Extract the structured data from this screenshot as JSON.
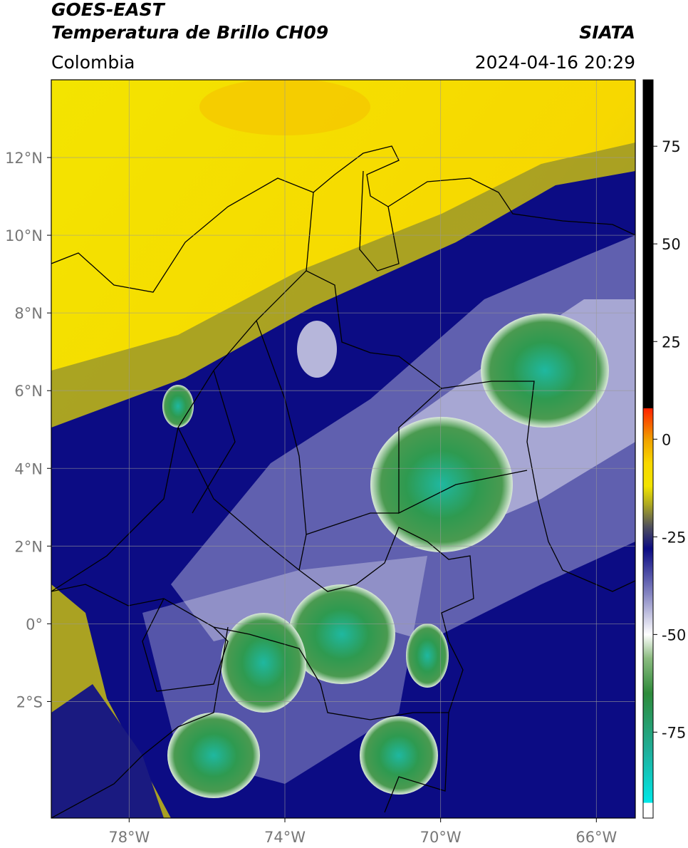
{
  "header": {
    "source": "GOES-EAST",
    "title": "Temperatura de Brillo CH09",
    "agency": "SIATA",
    "region": "Colombia",
    "datetime": "2024-04-16 20:29"
  },
  "map": {
    "xlim": [
      -80,
      -65
    ],
    "ylim": [
      -5,
      14
    ],
    "grid": true,
    "xticks": [
      {
        "value": -78,
        "label": "78°W"
      },
      {
        "value": -74,
        "label": "74°W"
      },
      {
        "value": -70,
        "label": "70°W"
      },
      {
        "value": -66,
        "label": "66°W"
      }
    ],
    "yticks": [
      {
        "value": 12,
        "label": "12°N"
      },
      {
        "value": 10,
        "label": "10°N"
      },
      {
        "value": 8,
        "label": "8°N"
      },
      {
        "value": 6,
        "label": "6°N"
      },
      {
        "value": 4,
        "label": "4°N"
      },
      {
        "value": 2,
        "label": "2°N"
      },
      {
        "value": 0,
        "label": "0°"
      },
      {
        "value": -2,
        "label": "2°S"
      }
    ]
  },
  "colorbar": {
    "lim": [
      -97,
      92
    ],
    "ticks": [
      75,
      50,
      25,
      0,
      -25,
      -50,
      -75
    ],
    "stops": [
      {
        "value": -97,
        "color": "#ffffff"
      },
      {
        "value": -93,
        "color": "#ffffff"
      },
      {
        "value": -93,
        "color": "#00e8e8"
      },
      {
        "value": -80,
        "color": "#1fb09c"
      },
      {
        "value": -65,
        "color": "#2e8b3a"
      },
      {
        "value": -56,
        "color": "#8cbc80"
      },
      {
        "value": -50,
        "color": "#ffffff"
      },
      {
        "value": -40,
        "color": "#8a8ac4"
      },
      {
        "value": -28,
        "color": "#0a0a82"
      },
      {
        "value": -22,
        "color": "#55555a"
      },
      {
        "value": -17,
        "color": "#a8a424"
      },
      {
        "value": -12,
        "color": "#f2e400"
      },
      {
        "value": -6,
        "color": "#f8d800"
      },
      {
        "value": 0,
        "color": "#f0a000"
      },
      {
        "value": 8,
        "color": "#ff2000"
      },
      {
        "value": 8,
        "color": "#000000"
      },
      {
        "value": 92,
        "color": "#000000"
      }
    ]
  }
}
